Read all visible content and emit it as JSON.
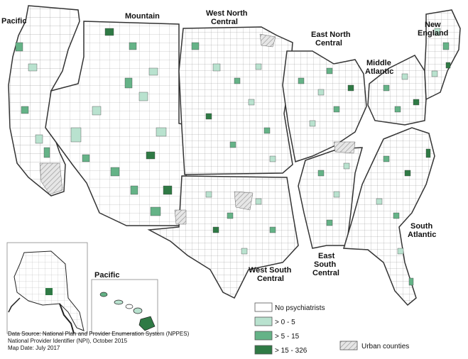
{
  "map": {
    "regions": {
      "pacific": "Pacific",
      "mountain": "Mountain",
      "west_north_central": [
        "West North",
        "Central"
      ],
      "east_north_central": [
        "East North",
        "Central"
      ],
      "new_england": [
        "New",
        "England"
      ],
      "middle_atlantic": [
        "Middle",
        "Atlantic"
      ],
      "west_south_central": [
        "West South",
        "Central"
      ],
      "east_south_central": [
        "East",
        "South",
        "Central"
      ],
      "south_atlantic": [
        "South",
        "Atlantic"
      ],
      "pacific_inset": "Pacific"
    },
    "legend": {
      "items": [
        {
          "label": "No psychiatrists",
          "color": "#ffffff"
        },
        {
          "label": "> 0 - 5",
          "color": "#b9e2cf"
        },
        {
          "label": "> 5 - 15",
          "color": "#65b387"
        },
        {
          "label": "> 15 - 326",
          "color": "#2f7a45"
        }
      ],
      "urban": {
        "label": "Urban counties",
        "pattern": "diagonal-hatch"
      }
    },
    "source": {
      "line1": "Data Source: National Plan and Provider Enumeration System (NPPES)",
      "line2": "National Provider Identifier (NPI), October 2015",
      "line3": "Map Date: July 2017"
    },
    "colors": {
      "border_dark": "#333333",
      "county_line": "#555555",
      "ocean": "#ffffff"
    }
  }
}
